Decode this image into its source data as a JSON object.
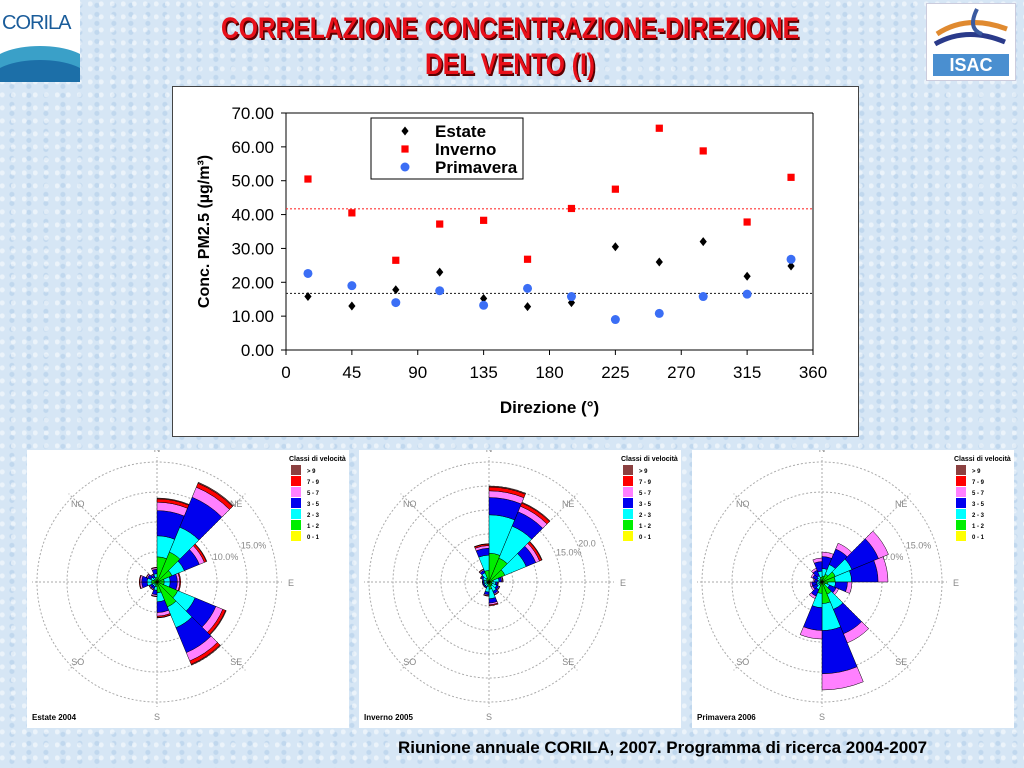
{
  "title": {
    "line1": "CORRELAZIONE CONCENTRAZIONE-DIREZIONE",
    "line2": "DEL VENTO (I)"
  },
  "logos": {
    "left": "CORILA",
    "right": "ISAC"
  },
  "footer": "Riunione annuale CORILA, 2007. Programma di ricerca 2004-2007",
  "chart_data": [
    {
      "type": "scatter",
      "title": "",
      "xlabel": "Direzione (°)",
      "ylabel": "Conc. PM2.5 (µg/m³)",
      "xlim": [
        0,
        360
      ],
      "ylim": [
        0,
        70
      ],
      "xticks": [
        "0",
        "45",
        "90",
        "135",
        "180",
        "225",
        "270",
        "315",
        "360"
      ],
      "yticks": [
        "0.00",
        "10.00",
        "20.00",
        "30.00",
        "40.00",
        "50.00",
        "60.00",
        "70.00"
      ],
      "legend_position": "top-left",
      "x": [
        15,
        45,
        75,
        105,
        135,
        165,
        195,
        225,
        255,
        285,
        315,
        345
      ],
      "series": [
        {
          "name": "Estate",
          "color": "#000000",
          "marker": "diamond",
          "values": [
            15.8,
            13.0,
            17.8,
            23.0,
            15.2,
            12.8,
            14.0,
            30.5,
            26.0,
            32.0,
            21.8,
            24.8
          ]
        },
        {
          "name": "Inverno",
          "color": "#ff0000",
          "marker": "square",
          "values": [
            50.5,
            40.5,
            26.5,
            37.2,
            38.3,
            26.8,
            41.8,
            47.5,
            65.5,
            58.8,
            37.8,
            51.0
          ]
        },
        {
          "name": "Primavera",
          "color": "#3b6ef5",
          "marker": "circle",
          "values": [
            22.6,
            19.0,
            14.0,
            17.5,
            13.2,
            18.2,
            15.8,
            9.0,
            10.8,
            15.8,
            16.5,
            26.8
          ]
        }
      ],
      "reference_lines": [
        {
          "value": 41.7,
          "color": "#ff3333"
        },
        {
          "value": 16.7,
          "color": "#333333"
        }
      ]
    },
    {
      "type": "windrose",
      "label": "Estate 2004",
      "ring_labels": [
        "10.0%",
        "15.0%"
      ],
      "rings": [
        5,
        10,
        15,
        20
      ],
      "max": 20,
      "sector_totals": [
        14,
        18,
        9,
        4,
        4,
        12.5,
        15,
        6,
        2.5,
        1.5,
        1.5,
        3,
        3,
        2,
        1.5,
        2.5
      ],
      "class_cumulative_fraction": [
        0.02,
        0.3,
        0.55,
        0.85,
        0.95,
        0.99,
        1
      ]
    },
    {
      "type": "windrose",
      "label": "Inverno 2005",
      "ring_labels": [
        "15.0%",
        "20.0"
      ],
      "rings": [
        5,
        10,
        15,
        20,
        25
      ],
      "max": 25,
      "sector_totals": [
        20,
        18,
        12,
        3,
        2,
        2.5,
        3,
        5,
        3,
        1.5,
        1.5,
        1.5,
        1.5,
        2,
        3,
        8
      ],
      "class_cumulative_fraction": [
        0.02,
        0.3,
        0.7,
        0.88,
        0.95,
        0.99,
        1
      ]
    },
    {
      "type": "windrose",
      "label": "Primavera 2006",
      "ring_labels": [
        "10.0%",
        "15.0%"
      ],
      "rings": [
        5,
        10,
        15,
        20
      ],
      "max": 20,
      "sector_totals": [
        5,
        7,
        12,
        11,
        5,
        3,
        11,
        18,
        9.5,
        3,
        2,
        2,
        1.5,
        2,
        2.5,
        4
      ],
      "class_cumulative_fraction": [
        0.02,
        0.2,
        0.45,
        0.85,
        1,
        1,
        1
      ]
    }
  ],
  "windrose_common": {
    "compass": [
      "N",
      "NE",
      "E",
      "SE",
      "S",
      "SO",
      "O",
      "NO"
    ],
    "legend_title": "Classi di velocità",
    "classes": [
      {
        "label": "0 - 1",
        "color": "#ffff00"
      },
      {
        "label": "1 - 2",
        "color": "#00ee00"
      },
      {
        "label": "2 - 3",
        "color": "#00ffff"
      },
      {
        "label": "3 - 5",
        "color": "#0000ee"
      },
      {
        "label": "5 - 7",
        "color": "#ff80ff"
      },
      {
        "label": "7 - 9",
        "color": "#ff0000"
      },
      {
        "label": "> 9",
        "color": "#8b4040"
      }
    ]
  }
}
